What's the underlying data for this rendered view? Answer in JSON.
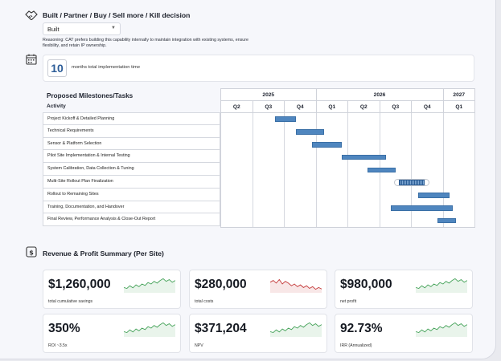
{
  "decision": {
    "title": "Built / Partner / Buy / Sell more / Kill decision",
    "selected": "Built",
    "reasoning": "Reasoning: CAT prefers building this capability internally to maintain integration with existing systems, ensure flexibility, and retain IP ownership."
  },
  "implementation": {
    "months": "10",
    "label": "months total implementation time"
  },
  "gantt": {
    "title": "Proposed Milestones/Tasks",
    "activity_header": "Activity",
    "years": [
      "2025",
      "2026",
      "2027"
    ],
    "quarters": [
      "Q2",
      "Q3",
      "Q4",
      "Q1",
      "Q2",
      "Q3",
      "Q4",
      "Q1"
    ],
    "tasks": [
      {
        "name": "Project Kickoff & Detailed Planning",
        "start": 1.7,
        "end": 2.35,
        "style": "solid"
      },
      {
        "name": "Technical Requirements",
        "start": 2.35,
        "end": 3.25,
        "style": "solid"
      },
      {
        "name": "Sensor & Platform Selection",
        "start": 2.85,
        "end": 3.8,
        "style": "solid"
      },
      {
        "name": "Pilot Site Implementation & Internal Testing",
        "start": 3.8,
        "end": 5.2,
        "style": "solid"
      },
      {
        "name": "System Calibration, Data Collection & Tuning",
        "start": 4.6,
        "end": 5.5,
        "style": "solid"
      },
      {
        "name": "Multi-Site Rollout Plan Finalization",
        "start": 5.6,
        "end": 6.4,
        "style": "hatched"
      },
      {
        "name": "Rollout to Remaining Sites",
        "start": 6.2,
        "end": 7.2,
        "style": "solid"
      },
      {
        "name": "Training, Documentation, and Handover",
        "start": 5.35,
        "end": 7.3,
        "style": "solid"
      },
      {
        "name": "Final Review, Performance Analysis & Close-Out Report",
        "start": 6.8,
        "end": 7.4,
        "style": "solid"
      }
    ]
  },
  "summary": {
    "title": "Revenue & Profit Summary (Per Site)",
    "metrics": [
      {
        "value": "$1,260,000",
        "label": "total cumulative savings",
        "trend": "up",
        "color": "#46a35a"
      },
      {
        "value": "$280,000",
        "label": "total costs",
        "trend": "down",
        "color": "#c43a3a"
      },
      {
        "value": "$980,000",
        "label": "net profit",
        "trend": "up",
        "color": "#46a35a"
      },
      {
        "value": "350%",
        "label": "ROI ~3.5x",
        "trend": "up",
        "color": "#46a35a"
      },
      {
        "value": "$371,204",
        "label": "NPV",
        "trend": "up",
        "color": "#46a35a"
      },
      {
        "value": "92.73%",
        "label": "IRR (Annualized)",
        "trend": "up",
        "color": "#46a35a"
      }
    ]
  }
}
